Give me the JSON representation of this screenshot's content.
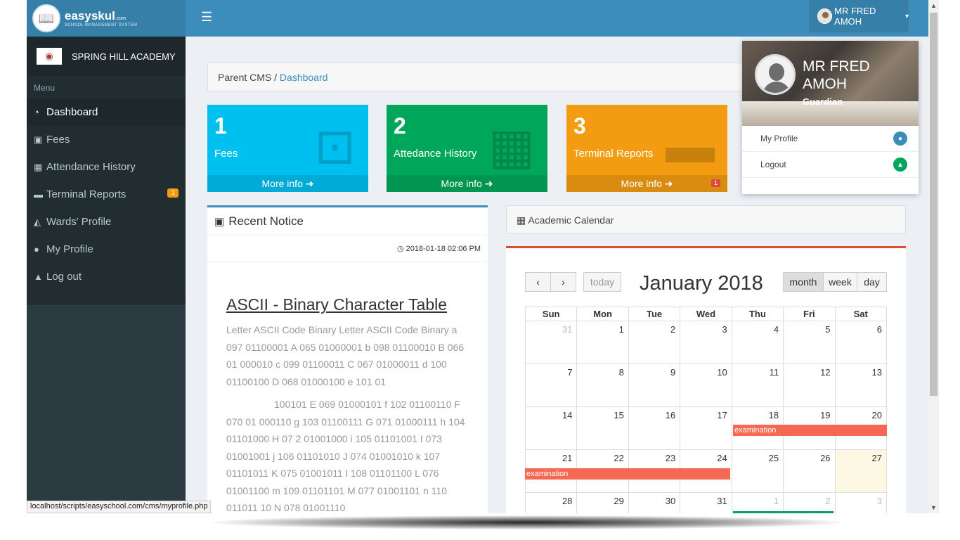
{
  "header": {
    "logo_brand": "easyskul",
    "logo_domain": ".com",
    "logo_tagline": "SCHOOL MANAGEMENT SYSTEM",
    "menu_toggle_icon": "bars-icon",
    "user_name": "MR FRED AMOH",
    "caret": "▾"
  },
  "sidebar": {
    "school_name": "SPRING HILL ACADEMY",
    "menu_heading": "Menu",
    "items": [
      {
        "label": "Dashboard",
        "icon": "dashboard-icon",
        "glyph": "◔"
      },
      {
        "label": "Fees",
        "icon": "money-icon",
        "glyph": "▣"
      },
      {
        "label": "Attendance History",
        "icon": "calendar-icon",
        "glyph": "▦"
      },
      {
        "label": "Terminal Reports",
        "icon": "folder-icon",
        "glyph": "▬",
        "badge": "1"
      },
      {
        "label": "Wards' Profile",
        "icon": "graduation-cap-icon",
        "glyph": "◭"
      },
      {
        "label": "My Profile",
        "icon": "user-icon",
        "glyph": "●"
      },
      {
        "label": "Log out",
        "icon": "lock-icon",
        "glyph": "▲"
      }
    ]
  },
  "breadcrumb": {
    "root": "Parent CMS",
    "separator": " / ",
    "current": "Dashboard"
  },
  "boxes": [
    {
      "number": "1",
      "label": "Fees",
      "footer": "More info ➜",
      "color": "#00c0ef",
      "icon": "money-icon",
      "glyph": "⊡"
    },
    {
      "number": "2",
      "label": "Attedance History",
      "footer": "More info ➜",
      "color": "#00a65a",
      "icon": "calendar-icon",
      "glyph": "▦"
    },
    {
      "number": "3",
      "label": "Terminal Reports",
      "footer": "More info ➜",
      "color": "#f39c12",
      "icon": "folder-icon",
      "glyph": "▬",
      "badge": "1"
    }
  ],
  "notice": {
    "heading": "Recent Notice",
    "heading_icon": "calendar-icon",
    "date": "◷ 2018-01-18 02:06 PM",
    "title": "ASCII - Binary Character Table",
    "para1": "Letter ASCII Code Binary Letter ASCII Code Binary a 097 01100001 A 065 01000001 b 098 01100010 B 066 01 000010 c 099 01100011 C 067 01000011 d 100 01100100 D 068 01000100 e 101 01",
    "para2": "100101 E 069 01000101 f 102 01100110 F 070 01 000110 g 103 01100111 G 071 01000111 h 104 01101000 H 07 2 01001000 i 105 01101001 I 073 01001001 j 106 01101010 J 074 01001010 k 107 01101011 K 075 01001011 l 108 01101100 L 076 01001100 m 109 01101101 M 077 01001101 n 110 011011 10 N 078 01001110"
  },
  "calendar": {
    "heading": "▦ Academic Calendar",
    "prev": "‹",
    "next": "›",
    "today": "today",
    "title": "January 2018",
    "views": [
      "month",
      "week",
      "day"
    ],
    "weekdays": [
      "Sun",
      "Mon",
      "Tue",
      "Wed",
      "Thu",
      "Fri",
      "Sat"
    ],
    "weeks": [
      [
        "31",
        "1",
        "2",
        "3",
        "4",
        "5",
        "6"
      ],
      [
        "7",
        "8",
        "9",
        "10",
        "11",
        "12",
        "13"
      ],
      [
        "14",
        "15",
        "16",
        "17",
        "18",
        "19",
        "20"
      ],
      [
        "21",
        "22",
        "23",
        "24",
        "25",
        "26",
        "27"
      ],
      [
        "28",
        "29",
        "30",
        "31",
        "1",
        "2",
        "3"
      ]
    ],
    "events": [
      {
        "label": "examination"
      },
      {
        "label": "examination"
      },
      {
        "label": ""
      }
    ]
  },
  "dropdown": {
    "name": "MR FRED AMOH",
    "role": "Guardian",
    "items": [
      {
        "label": "My Profile",
        "icon": "user-circle-icon",
        "color": "#3c8dbc"
      },
      {
        "label": "Logout",
        "icon": "lock-circle-icon",
        "color": "#00a65a"
      }
    ]
  },
  "status_url": "localhost/scripts/easyschool.com/cms/myprofile.php"
}
